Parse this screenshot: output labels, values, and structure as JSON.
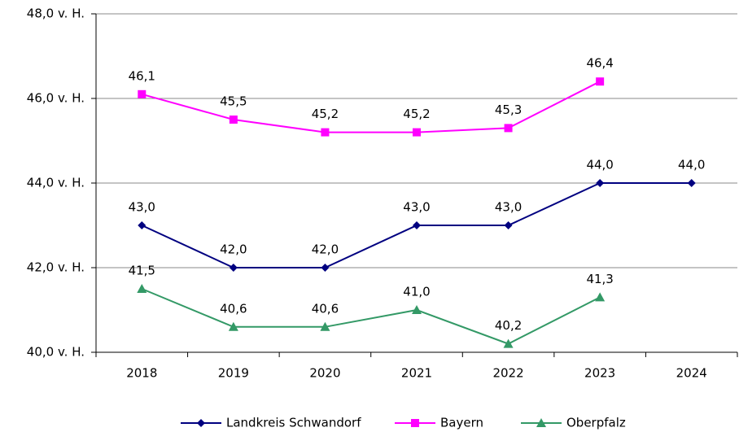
{
  "chart_data": {
    "type": "line",
    "categories": [
      "2018",
      "2019",
      "2020",
      "2021",
      "2022",
      "2023",
      "2024"
    ],
    "series": [
      {
        "name": "Landkreis Schwandorf",
        "color": "#000080",
        "marker": "diamond",
        "values": [
          43.0,
          42.0,
          42.0,
          43.0,
          43.0,
          44.0,
          44.0
        ],
        "value_labels": [
          "43,0",
          "42,0",
          "42,0",
          "43,0",
          "43,0",
          "44,0",
          "44,0"
        ]
      },
      {
        "name": "Bayern",
        "color": "#ff00ff",
        "marker": "square",
        "values": [
          46.1,
          45.5,
          45.2,
          45.2,
          45.3,
          46.4,
          null
        ],
        "value_labels": [
          "46,1",
          "45,5",
          "45,2",
          "45,2",
          "45,3",
          "46,4",
          null
        ]
      },
      {
        "name": "Oberpfalz",
        "color": "#339966",
        "marker": "triangle",
        "values": [
          41.5,
          40.6,
          40.6,
          41.0,
          40.2,
          41.3,
          null
        ],
        "value_labels": [
          "41,5",
          "40,6",
          "40,6",
          "41,0",
          "40,2",
          "41,3",
          null
        ]
      }
    ],
    "ylim": [
      40,
      48
    ],
    "yticks": [
      {
        "value": 40,
        "label": "40,0 v. H."
      },
      {
        "value": 42,
        "label": "42,0 v. H."
      },
      {
        "value": 44,
        "label": "44,0 v. H."
      },
      {
        "value": 46,
        "label": "46,0 v. H."
      },
      {
        "value": 48,
        "label": "48,0 v. H."
      }
    ],
    "grid": true,
    "legend": "bottom"
  }
}
